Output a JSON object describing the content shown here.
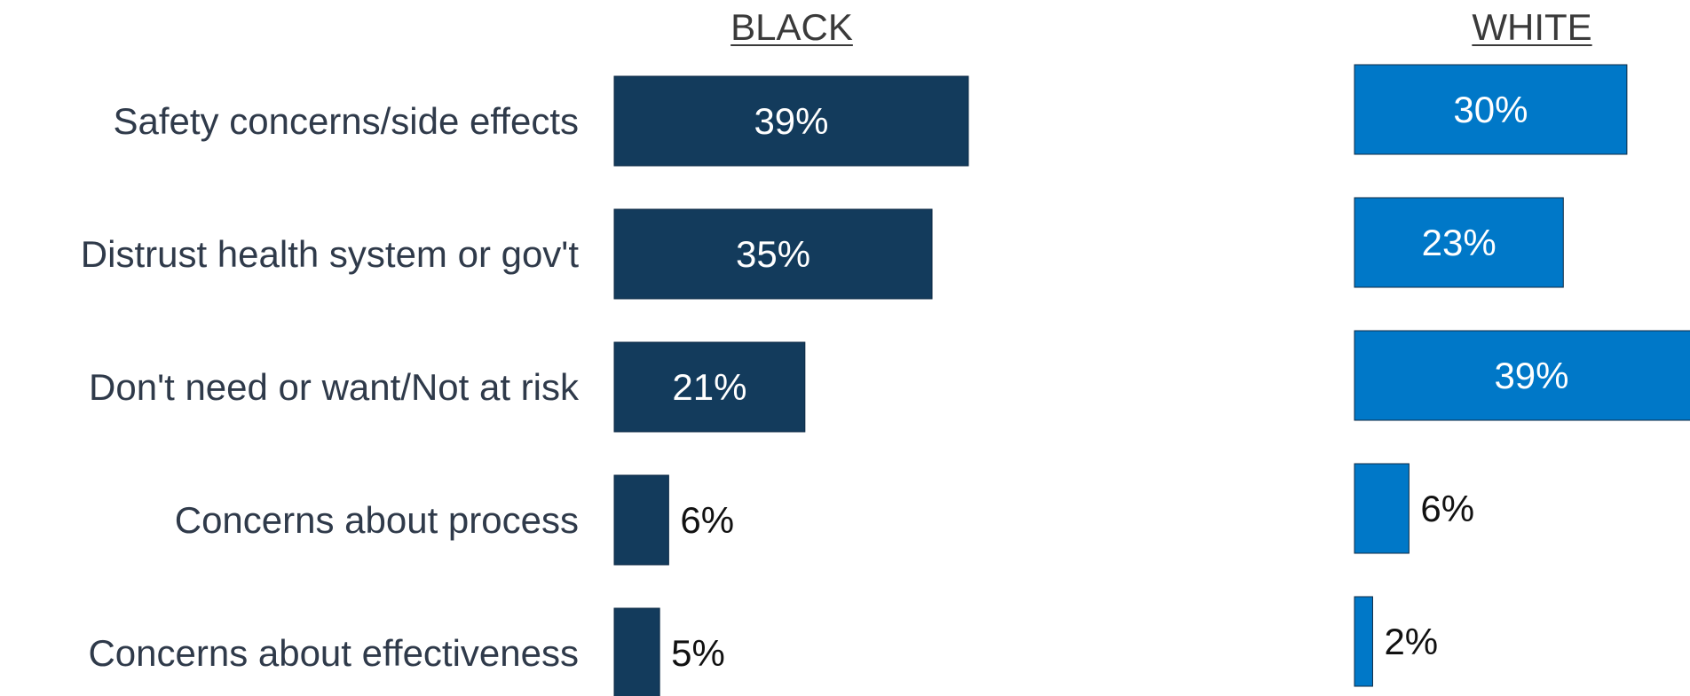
{
  "chart_data": {
    "type": "bar",
    "orientation": "horizontal",
    "categories": [
      "Safety concerns/side effects",
      "Distrust health system or gov't",
      "Don't need or want/Not at risk",
      "Concerns about process",
      "Concerns about effectiveness"
    ],
    "series": [
      {
        "name": "BLACK",
        "color": "#133b5c",
        "values": [
          39,
          35,
          21,
          6,
          5
        ],
        "value_labels": [
          "39%",
          "35%",
          "21%",
          "6%",
          "5%"
        ]
      },
      {
        "name": "WHITE",
        "color": "#0078c8",
        "values": [
          30,
          23,
          39,
          6,
          2
        ],
        "value_labels": [
          "30%",
          "23%",
          "39%",
          "6%",
          "2%"
        ]
      }
    ],
    "unit": "%",
    "xlim": [
      0,
      39
    ],
    "grid": false,
    "legend": "none"
  }
}
